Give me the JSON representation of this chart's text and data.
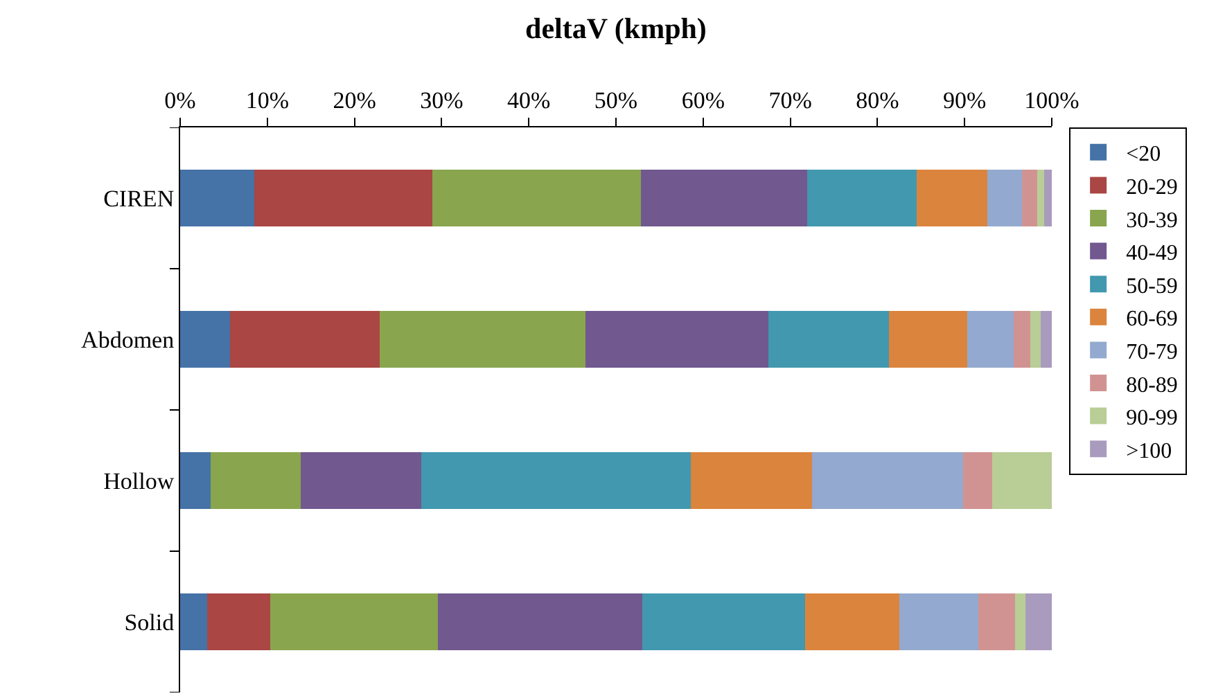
{
  "chart_data": {
    "type": "bar",
    "orientation": "horizontal",
    "stacked": true,
    "title": "deltaV (kmph)",
    "categories": [
      "CIREN",
      "Abdomen",
      "Hollow",
      "Solid"
    ],
    "series": [
      {
        "name": "<20",
        "color": "#4572a7",
        "values": [
          8.5,
          5.7,
          3.5,
          3.1
        ]
      },
      {
        "name": "20-29",
        "color": "#aa4643",
        "values": [
          20.4,
          17.2,
          0,
          7.2
        ]
      },
      {
        "name": "30-39",
        "color": "#89a54e",
        "values": [
          24.0,
          23.6,
          10.3,
          19.3
        ]
      },
      {
        "name": "40-49",
        "color": "#71588f",
        "values": [
          19.0,
          21.0,
          13.9,
          23.4
        ]
      },
      {
        "name": "50-59",
        "color": "#4198af",
        "values": [
          12.6,
          13.8,
          30.9,
          18.7
        ]
      },
      {
        "name": "60-69",
        "color": "#db843d",
        "values": [
          8.1,
          9.0,
          13.9,
          10.8
        ]
      },
      {
        "name": "70-79",
        "color": "#93a9cf",
        "values": [
          4.0,
          5.3,
          17.3,
          9.1
        ]
      },
      {
        "name": "80-89",
        "color": "#d19392",
        "values": [
          1.7,
          1.9,
          3.4,
          4.2
        ]
      },
      {
        "name": "90-99",
        "color": "#b9cd96",
        "values": [
          0.8,
          1.2,
          6.8,
          1.2
        ]
      },
      {
        "name": ">100",
        "color": "#a99bbd",
        "values": [
          0.9,
          1.3,
          0,
          3.0
        ]
      }
    ],
    "xlim": [
      0,
      100
    ],
    "xticks": [
      {
        "value": 0,
        "label": "0%"
      },
      {
        "value": 10,
        "label": "10%"
      },
      {
        "value": 20,
        "label": "20%"
      },
      {
        "value": 30,
        "label": "30%"
      },
      {
        "value": 40,
        "label": "40%"
      },
      {
        "value": 50,
        "label": "50%"
      },
      {
        "value": 60,
        "label": "60%"
      },
      {
        "value": 70,
        "label": "70%"
      },
      {
        "value": 80,
        "label": "80%"
      },
      {
        "value": 90,
        "label": "90%"
      },
      {
        "value": 100,
        "label": "100%"
      }
    ],
    "grid": false,
    "legend": "right"
  }
}
